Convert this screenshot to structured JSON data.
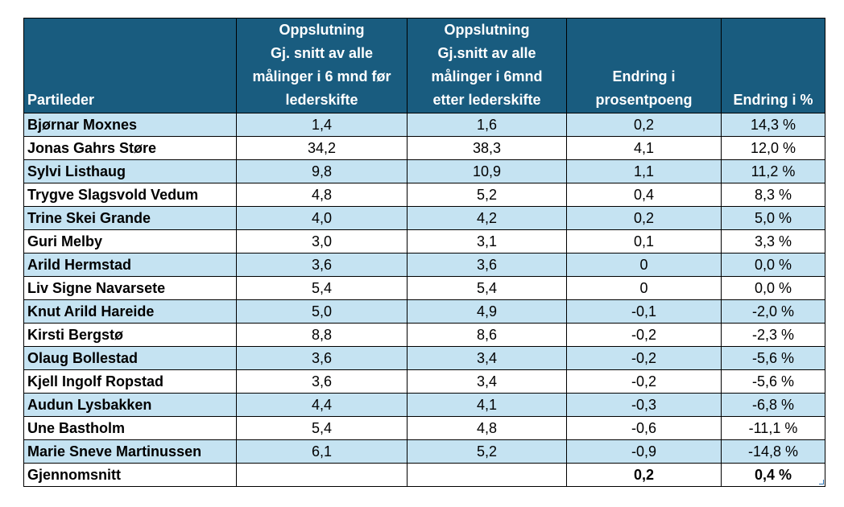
{
  "headers": [
    [
      "Partileder"
    ],
    [
      "Oppslutning",
      "Gj. snitt av alle",
      "målinger i 6 mnd før",
      "lederskifte"
    ],
    [
      "Oppslutning",
      "Gj.snitt av alle",
      "målinger i 6mnd",
      "etter lederskifte"
    ],
    [
      "Endring i",
      "prosentpoeng"
    ],
    [
      "Endring i %"
    ]
  ],
  "rows": [
    {
      "name": "Bjørnar Moxnes",
      "before": "1,4",
      "after": "1,6",
      "change_pp": "0,2",
      "change_pct": "14,3 %"
    },
    {
      "name": "Jonas Gahrs Støre",
      "before": "34,2",
      "after": "38,3",
      "change_pp": "4,1",
      "change_pct": "12,0 %"
    },
    {
      "name": "Sylvi Listhaug",
      "before": "9,8",
      "after": "10,9",
      "change_pp": "1,1",
      "change_pct": "11,2 %"
    },
    {
      "name": "Trygve Slagsvold Vedum",
      "before": "4,8",
      "after": "5,2",
      "change_pp": "0,4",
      "change_pct": "8,3 %"
    },
    {
      "name": "Trine Skei Grande",
      "before": "4,0",
      "after": "4,2",
      "change_pp": "0,2",
      "change_pct": "5,0 %"
    },
    {
      "name": "Guri Melby",
      "before": "3,0",
      "after": "3,1",
      "change_pp": "0,1",
      "change_pct": "3,3 %"
    },
    {
      "name": "Arild Hermstad",
      "before": "3,6",
      "after": "3,6",
      "change_pp": "0",
      "change_pct": "0,0 %"
    },
    {
      "name": "Liv Signe Navarsete",
      "before": "5,4",
      "after": "5,4",
      "change_pp": "0",
      "change_pct": "0,0 %"
    },
    {
      "name": "Knut Arild Hareide",
      "before": "5,0",
      "after": "4,9",
      "change_pp": "-0,1",
      "change_pct": "-2,0 %"
    },
    {
      "name": "Kirsti Bergstø",
      "before": "8,8",
      "after": "8,6",
      "change_pp": "-0,2",
      "change_pct": "-2,3 %"
    },
    {
      "name": "Olaug Bollestad",
      "before": "3,6",
      "after": "3,4",
      "change_pp": "-0,2",
      "change_pct": "-5,6 %"
    },
    {
      "name": "Kjell Ingolf Ropstad",
      "before": "3,6",
      "after": "3,4",
      "change_pp": "-0,2",
      "change_pct": "-5,6 %"
    },
    {
      "name": "Audun Lysbakken",
      "before": "4,4",
      "after": "4,1",
      "change_pp": "-0,3",
      "change_pct": "-6,8 %"
    },
    {
      "name": "Une Bastholm",
      "before": "5,4",
      "after": "4,8",
      "change_pp": "-0,6",
      "change_pct": "-11,1 %"
    },
    {
      "name": "Marie Sneve Martinussen",
      "before": "6,1",
      "after": "5,2",
      "change_pp": "-0,9",
      "change_pct": "-14,8 %"
    }
  ],
  "total": {
    "label": "Gjennomsnitt",
    "change_pp": "0,2",
    "change_pct": "0,4 %"
  },
  "colors": {
    "header_bg": "#195c7f",
    "header_text": "#ffffff",
    "band": "#c5e3f2",
    "border": "#000000"
  }
}
